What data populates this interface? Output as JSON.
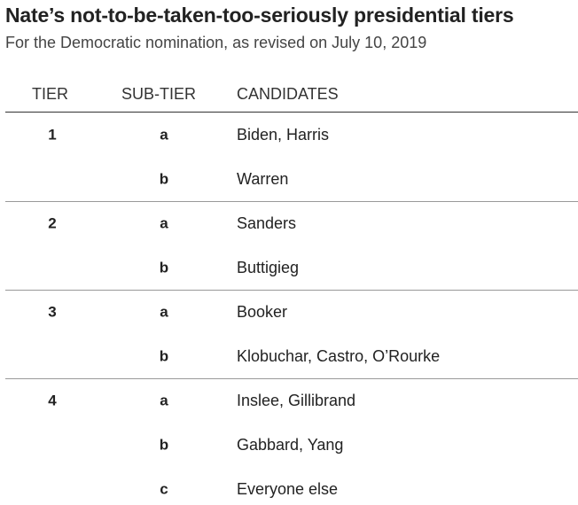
{
  "header": {
    "title": "Nate’s not-to-be-taken-too-seriously presidential tiers",
    "subtitle": "For the Democratic nomination, as revised on July 10, 2019"
  },
  "table": {
    "columns": [
      "TIER",
      "SUB-TIER",
      "CANDIDATES"
    ],
    "groups": [
      {
        "tier": "1",
        "rows": [
          {
            "sub": "a",
            "candidates": "Biden, Harris"
          },
          {
            "sub": "b",
            "candidates": "Warren"
          }
        ]
      },
      {
        "tier": "2",
        "rows": [
          {
            "sub": "a",
            "candidates": "Sanders"
          },
          {
            "sub": "b",
            "candidates": "Buttigieg"
          }
        ]
      },
      {
        "tier": "3",
        "rows": [
          {
            "sub": "a",
            "candidates": "Booker"
          },
          {
            "sub": "b",
            "candidates": "Klobuchar, Castro, O’Rourke"
          }
        ]
      },
      {
        "tier": "4",
        "rows": [
          {
            "sub": "a",
            "candidates": "Inslee, Gillibrand"
          },
          {
            "sub": "b",
            "candidates": "Gabbard, Yang"
          },
          {
            "sub": "c",
            "candidates": "Everyone else"
          }
        ]
      }
    ]
  }
}
